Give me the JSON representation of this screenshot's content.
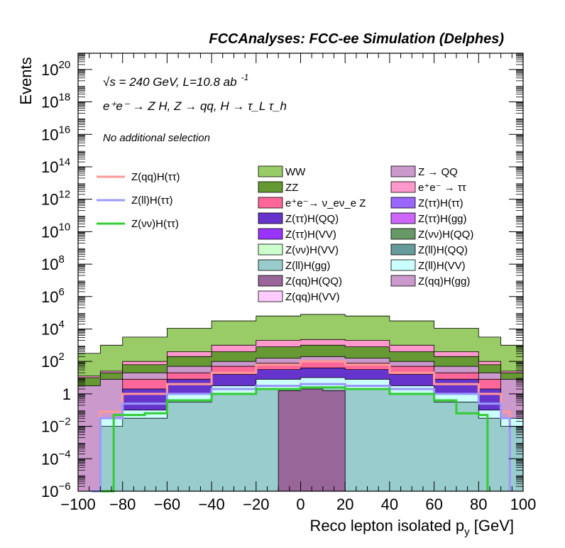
{
  "chart_data": {
    "type": "area",
    "title": "FCCAnalyses: FCC-ee Simulation (Delphes)",
    "xlabel": "Reco lepton isolated p",
    "xlabel_sub": "y",
    "xlabel_unit": " [GeV]",
    "ylabel": "Events",
    "xlim": [
      -100,
      100
    ],
    "ylim": [
      1e-06,
      1e+21
    ],
    "y_scale": "log",
    "legend_placement": "top-right",
    "annotations": {
      "energy": "√s = 240 GeV, L=10.8 ab",
      "energy_sup": "-1",
      "process": "e⁺e⁻ → Z H, Z → qq, H → τ_L τ_h",
      "selection": "No additional selection"
    },
    "x_ticks": [
      {
        "value": -100,
        "label": "−100"
      },
      {
        "value": -80,
        "label": "−80"
      },
      {
        "value": -60,
        "label": "−60"
      },
      {
        "value": -40,
        "label": "−40"
      },
      {
        "value": -20,
        "label": "−20"
      },
      {
        "value": 0,
        "label": "0"
      },
      {
        "value": 20,
        "label": "20"
      },
      {
        "value": 40,
        "label": "40"
      },
      {
        "value": 60,
        "label": "60"
      },
      {
        "value": 80,
        "label": "80"
      },
      {
        "value": 100,
        "label": "100"
      }
    ],
    "y_ticks": [
      {
        "exp": -6,
        "base": "10",
        "sup": "−6"
      },
      {
        "exp": -4,
        "base": "10",
        "sup": "−4"
      },
      {
        "exp": -2,
        "base": "10",
        "sup": "−2"
      },
      {
        "exp": 0,
        "base": "1",
        "sup": ""
      },
      {
        "exp": 2,
        "base": "10",
        "sup": "2"
      },
      {
        "exp": 4,
        "base": "10",
        "sup": "4"
      },
      {
        "exp": 6,
        "base": "10",
        "sup": "6"
      },
      {
        "exp": 8,
        "base": "10",
        "sup": "8"
      },
      {
        "exp": 10,
        "base": "10",
        "sup": "10"
      },
      {
        "exp": 12,
        "base": "10",
        "sup": "12"
      },
      {
        "exp": 14,
        "base": "10",
        "sup": "14"
      },
      {
        "exp": 16,
        "base": "10",
        "sup": "16"
      },
      {
        "exp": 18,
        "base": "10",
        "sup": "18"
      },
      {
        "exp": 20,
        "base": "10",
        "sup": "20"
      }
    ],
    "signal_legend": [
      {
        "name": "Z(qq)H(ττ)",
        "color": "#ff9999"
      },
      {
        "name": "Z(ll)H(ττ)",
        "color": "#9999ff"
      },
      {
        "name": "Z(νν)H(ττ)",
        "color": "#33cc33"
      }
    ],
    "background_legend": [
      {
        "name": "WW",
        "color": "#99cc66"
      },
      {
        "name": "Z → QQ",
        "color": "#cc99cc"
      },
      {
        "name": "ZZ",
        "color": "#669933"
      },
      {
        "name": "e⁺e⁻ → ττ",
        "color": "#ff99cc"
      },
      {
        "name": "e⁺e⁻→ ν_eν_e Z",
        "color": "#ff6699"
      },
      {
        "name": "Z(ττ)H(ττ)",
        "color": "#9966ff"
      },
      {
        "name": "Z(ττ)H(QQ)",
        "color": "#6633cc"
      },
      {
        "name": "Z(ττ)H(gg)",
        "color": "#cc66ff"
      },
      {
        "name": "Z(ττ)H(VV)",
        "color": "#9933ff"
      },
      {
        "name": "Z(νν)H(QQ)",
        "color": "#669966"
      },
      {
        "name": "Z(νν)H(VV)",
        "color": "#ccffcc"
      },
      {
        "name": "Z(ll)H(QQ)",
        "color": "#669999"
      },
      {
        "name": "Z(ll)H(gg)",
        "color": "#99cccc"
      },
      {
        "name": "Z(ll)H(VV)",
        "color": "#ccffff"
      },
      {
        "name": "Z(qq)H(QQ)",
        "color": "#996699"
      },
      {
        "name": "Z(qq)H(gg)",
        "color": "#cc99cc"
      },
      {
        "name": "Z(qq)H(VV)",
        "color": "#ffccff"
      }
    ],
    "stack_envelopes": [
      {
        "name": "WW",
        "color": "#99cc66",
        "values": [
          [
            -100,
            2.5
          ],
          [
            -90,
            3.0
          ],
          [
            -80,
            3.5
          ],
          [
            -60,
            4.05
          ],
          [
            -40,
            4.5
          ],
          [
            -20,
            4.8
          ],
          [
            0,
            4.9
          ],
          [
            20,
            4.8
          ],
          [
            40,
            4.5
          ],
          [
            60,
            4.05
          ],
          [
            80,
            3.5
          ],
          [
            90,
            3.0
          ],
          [
            100,
            2.5
          ]
        ]
      },
      {
        "name": "e⁺e⁻ → ττ",
        "color": "#ff99cc",
        "values": [
          [
            -100,
            1.1
          ],
          [
            -90,
            1.4
          ],
          [
            -80,
            2.0
          ],
          [
            -60,
            2.6
          ],
          [
            -40,
            3.0
          ],
          [
            -20,
            3.3
          ],
          [
            0,
            3.35
          ],
          [
            20,
            3.3
          ],
          [
            40,
            3.0
          ],
          [
            60,
            2.6
          ],
          [
            80,
            2.0
          ],
          [
            90,
            1.4
          ],
          [
            100,
            1.1
          ]
        ]
      },
      {
        "name": "ZZ",
        "color": "#669933",
        "values": [
          [
            -100,
            1.0
          ],
          [
            -90,
            1.3
          ],
          [
            -80,
            1.8
          ],
          [
            -60,
            2.3
          ],
          [
            -40,
            2.6
          ],
          [
            -20,
            2.9
          ],
          [
            0,
            3.0
          ],
          [
            20,
            2.9
          ],
          [
            40,
            2.6
          ],
          [
            60,
            2.3
          ],
          [
            80,
            1.8
          ],
          [
            90,
            1.3
          ],
          [
            100,
            1.0
          ]
        ]
      },
      {
        "name": "Z → QQ",
        "color": "#cc99cc",
        "values": [
          [
            -100,
            0.5
          ],
          [
            -90,
            0.9
          ],
          [
            -80,
            1.3
          ],
          [
            -60,
            1.7
          ],
          [
            -40,
            2.0
          ],
          [
            -20,
            2.2
          ],
          [
            0,
            2.3
          ],
          [
            20,
            2.2
          ],
          [
            40,
            2.0
          ],
          [
            60,
            1.7
          ],
          [
            80,
            1.3
          ],
          [
            90,
            0.9
          ],
          [
            100,
            0.5
          ]
        ]
      },
      {
        "name": "e⁺e⁻→ ν_eν_e Z",
        "color": "#ff6699",
        "values": [
          [
            -100,
            -6
          ],
          [
            -90,
            -6
          ],
          [
            -80,
            0.9
          ],
          [
            -60,
            1.3
          ],
          [
            -40,
            1.7
          ],
          [
            -20,
            1.9
          ],
          [
            0,
            2.0
          ],
          [
            20,
            1.9
          ],
          [
            40,
            1.7
          ],
          [
            60,
            1.3
          ],
          [
            80,
            0.9
          ],
          [
            90,
            -6
          ],
          [
            100,
            -6
          ]
        ]
      },
      {
        "name": "Z(ττ)H(QQ)",
        "color": "#6633cc",
        "values": [
          [
            -100,
            -6
          ],
          [
            -90,
            -6
          ],
          [
            -80,
            0.3
          ],
          [
            -60,
            0.9
          ],
          [
            -40,
            1.2
          ],
          [
            -20,
            1.5
          ],
          [
            0,
            1.6
          ],
          [
            20,
            1.5
          ],
          [
            40,
            1.2
          ],
          [
            60,
            0.9
          ],
          [
            80,
            0.3
          ],
          [
            90,
            -6
          ],
          [
            100,
            -6
          ]
        ]
      },
      {
        "name": "Z(ll)H(VV)",
        "color": "#ccffff",
        "values": [
          [
            -100,
            -6
          ],
          [
            -90,
            -1.5
          ],
          [
            -80,
            -1.0
          ],
          [
            -60,
            0.0
          ],
          [
            -40,
            0.5
          ],
          [
            -20,
            0.9
          ],
          [
            0,
            1.0
          ],
          [
            20,
            0.9
          ],
          [
            40,
            0.5
          ],
          [
            60,
            0.0
          ],
          [
            80,
            -1.0
          ],
          [
            90,
            -1.5
          ],
          [
            100,
            -6
          ]
        ]
      },
      {
        "name": "Z(ll)H(gg)",
        "color": "#99cccc",
        "values": [
          [
            -100,
            -6
          ],
          [
            -90,
            -2.0
          ],
          [
            -80,
            -1.5
          ],
          [
            -60,
            -0.5
          ],
          [
            -40,
            0.0
          ],
          [
            -20,
            0.3
          ],
          [
            0,
            0.4
          ],
          [
            20,
            0.3
          ],
          [
            40,
            0.0
          ],
          [
            60,
            -0.5
          ],
          [
            80,
            -1.5
          ],
          [
            90,
            -2.0
          ],
          [
            100,
            -6
          ]
        ]
      },
      {
        "name": "Z(qq)H(QQ)",
        "color": "#996699",
        "values": [
          [
            -100,
            -6
          ],
          [
            -90,
            -6
          ],
          [
            -80,
            -6
          ],
          [
            -60,
            -6
          ],
          [
            -40,
            -6
          ],
          [
            -20,
            -6
          ],
          [
            -10,
            0.2
          ],
          [
            0,
            0.3
          ],
          [
            10,
            0.2
          ],
          [
            20,
            -6
          ],
          [
            40,
            -6
          ],
          [
            60,
            -6
          ],
          [
            80,
            -6
          ],
          [
            90,
            -6
          ],
          [
            100,
            -6
          ]
        ]
      }
    ],
    "signal_curves": [
      {
        "name": "Z(qq)H(ττ)",
        "color": "#ff9999",
        "values": [
          [
            -94,
            -6
          ],
          [
            -90,
            -1.1
          ],
          [
            -80,
            0.0
          ],
          [
            -60,
            0.6
          ],
          [
            -40,
            1.3
          ],
          [
            -20,
            1.8
          ],
          [
            0,
            2.0
          ],
          [
            20,
            1.8
          ],
          [
            40,
            1.3
          ],
          [
            60,
            0.6
          ],
          [
            80,
            0.0
          ],
          [
            90,
            -1.1
          ],
          [
            94,
            -6
          ]
        ]
      },
      {
        "name": "Z(ll)H(ττ)",
        "color": "#9999ff",
        "values": [
          [
            -94,
            -6
          ],
          [
            -90,
            -1.5
          ],
          [
            -80,
            -0.6
          ],
          [
            -60,
            0.0
          ],
          [
            -40,
            0.3
          ],
          [
            -20,
            0.5
          ],
          [
            0,
            0.6
          ],
          [
            20,
            0.5
          ],
          [
            40,
            0.3
          ],
          [
            60,
            0.0
          ],
          [
            80,
            -0.6
          ],
          [
            90,
            -1.5
          ],
          [
            94,
            -6
          ]
        ]
      },
      {
        "name": "Z(νν)H(ττ)",
        "color": "#33cc33",
        "values": [
          [
            -90,
            -6
          ],
          [
            -84,
            -1.3
          ],
          [
            -70,
            -1.2
          ],
          [
            -60,
            -0.4
          ],
          [
            -40,
            0.0
          ],
          [
            -20,
            0.3
          ],
          [
            0,
            0.4
          ],
          [
            20,
            0.3
          ],
          [
            40,
            0.0
          ],
          [
            60,
            -0.4
          ],
          [
            70,
            -1.2
          ],
          [
            80,
            -1.3
          ],
          [
            84,
            -6
          ]
        ]
      }
    ]
  }
}
